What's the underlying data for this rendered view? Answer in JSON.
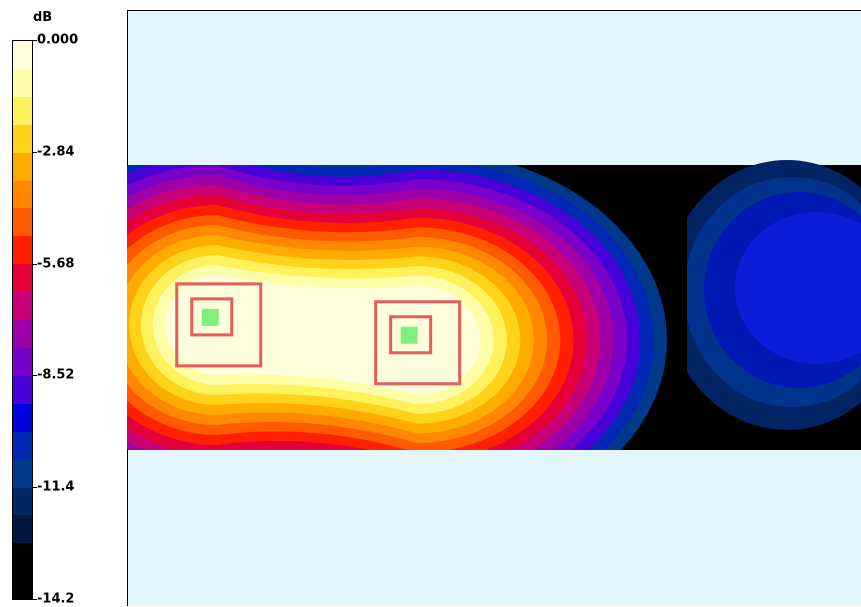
{
  "chart_data": {
    "type": "heatmap",
    "unit": "dB",
    "colorbar": {
      "tick_labels": [
        "0.000",
        "-2.84",
        "-5.68",
        "-8.52",
        "-11.4",
        "-14.2"
      ],
      "min": -14.2,
      "max": 0.0,
      "colors": [
        "#ffffdc",
        "#ffffa8",
        "#fff25c",
        "#ffd21c",
        "#ffac00",
        "#ff8800",
        "#ff5a00",
        "#ff2000",
        "#e6003a",
        "#c80078",
        "#a000a8",
        "#7800c8",
        "#4800d8",
        "#0000d8",
        "#0028b4",
        "#00388c",
        "#002864",
        "#001840",
        "#000000",
        "#000000"
      ]
    },
    "background_color": "#e4f6fd",
    "band_background_color": "#000000",
    "markers": [
      {
        "type": "square-target",
        "x": 0.125,
        "y": 0.53
      },
      {
        "type": "square-target",
        "x": 0.396,
        "y": 0.56
      }
    ],
    "marker_color": "#ea5a5a",
    "marker_center_color": "#7ff07f",
    "blue_zone_color": "#0b1ed8"
  }
}
